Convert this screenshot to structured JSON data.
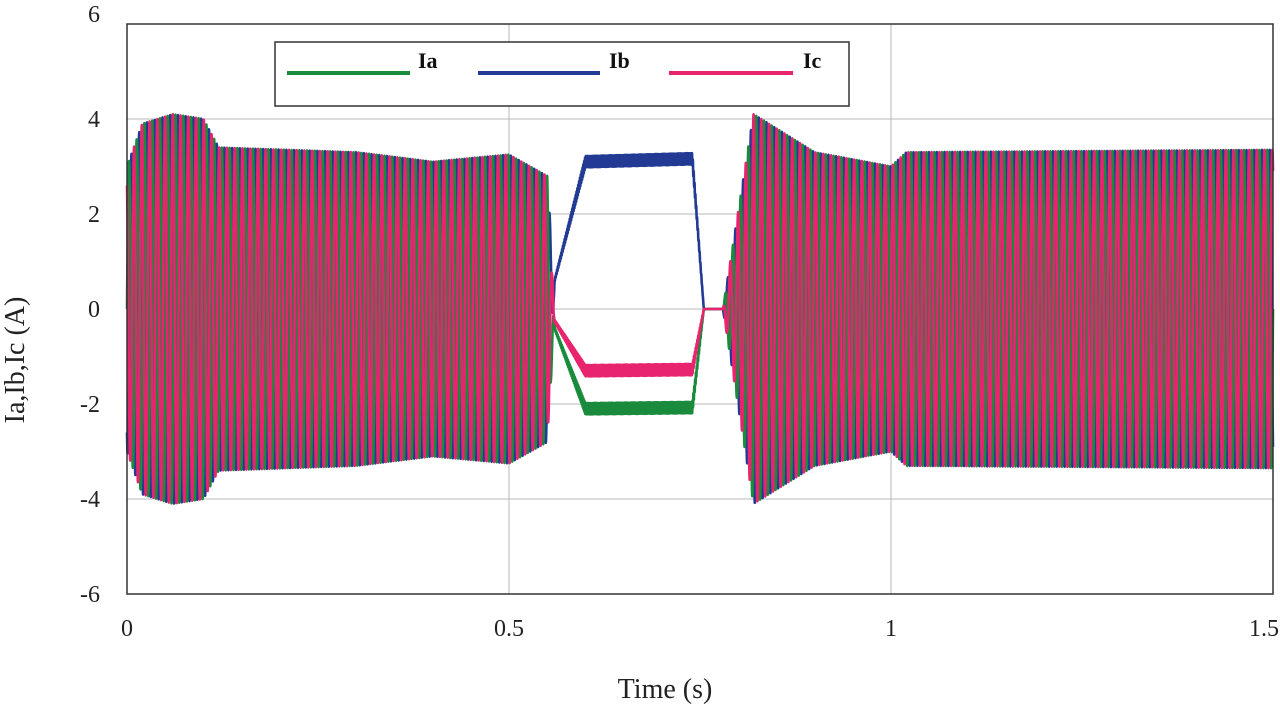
{
  "chart_data": {
    "type": "line",
    "title": "",
    "xlabel": "Time (s)",
    "ylabel": "Ia,Ib,Ic (A)",
    "xlim": [
      0,
      1.5
    ],
    "ylim": [
      -6,
      6
    ],
    "x_ticks": [
      0,
      0.5,
      1,
      1.5
    ],
    "x_tick_labels": [
      "0",
      "0.5",
      "1",
      "1.5"
    ],
    "y_ticks": [
      -6,
      -4,
      -2,
      0,
      2,
      4,
      6
    ],
    "y_tick_labels": [
      "-6",
      "-4",
      "-2",
      "0",
      "2",
      "4",
      "6"
    ],
    "grid": true,
    "legend": "top-left",
    "waveform": {
      "approx_cycles": 148,
      "envelope": {
        "t": [
          0,
          0.02,
          0.06,
          0.1,
          0.12,
          0.3,
          0.4,
          0.5,
          0.55,
          0.56,
          0.78,
          0.82,
          0.9,
          1.0,
          1.02,
          1.5
        ],
        "amplitude": [
          3.0,
          3.9,
          4.1,
          4.0,
          3.4,
          3.3,
          3.1,
          3.25,
          2.8,
          0,
          0,
          4.1,
          3.3,
          3.0,
          3.3,
          3.35
        ]
      },
      "dc_hold_interval": [
        0.6,
        0.74
      ],
      "dc_hold_values": {
        "Ia": -2.1,
        "Ib": 3.1,
        "Ic": -1.3
      }
    },
    "series": [
      {
        "name": "Ia",
        "color": "#1a8a3c",
        "phase_deg": 0
      },
      {
        "name": "Ib",
        "color": "#233a94",
        "phase_deg": -120
      },
      {
        "name": "Ic",
        "color": "#e8246e",
        "phase_deg": 120
      }
    ]
  }
}
